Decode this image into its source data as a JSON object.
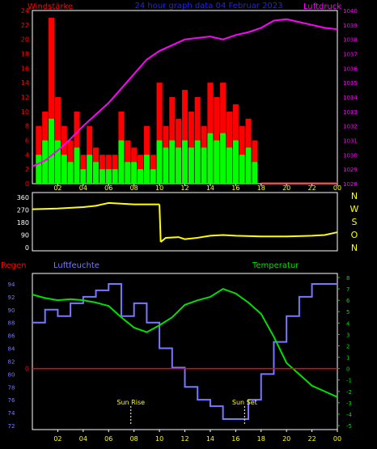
{
  "header": {
    "left_label": "Windstärke",
    "center_title": "24 hour graph data  04 Februar 2023",
    "right_label": "Luftdruck"
  },
  "colors": {
    "background": "#000000",
    "axis_frame": "#ffffff",
    "wind_gust": "#ff0000",
    "wind_avg": "#00ff00",
    "pressure": "#ff00ff",
    "direction": "#ffff00",
    "humidity": "#7878ff",
    "temperature": "#00e000",
    "rain": "#ff0000",
    "time_tick_text": "#ffff00"
  },
  "x_ticks": [
    "02",
    "04",
    "06",
    "08",
    "10",
    "12",
    "14",
    "16",
    "18",
    "20",
    "22",
    "00"
  ],
  "chart_data": [
    {
      "id": "wind_pressure",
      "type": "bar",
      "left_axis": {
        "label": "Windstärke",
        "ylim": [
          0,
          24
        ],
        "ticks": [
          0,
          2,
          4,
          6,
          8,
          10,
          12,
          14,
          16,
          18,
          20,
          22,
          24
        ]
      },
      "right_axis": {
        "label": "Luftdruck",
        "ylim": [
          1028,
          1040
        ],
        "ticks": [
          1028,
          1029,
          1030,
          1031,
          1032,
          1033,
          1034,
          1035,
          1036,
          1037,
          1038,
          1039,
          1040
        ]
      },
      "xlim": [
        0,
        24
      ],
      "series": [
        {
          "name": "gust",
          "kind": "bar",
          "x": [
            0.5,
            1.0,
            1.5,
            2.0,
            2.5,
            3.0,
            3.5,
            4.0,
            4.5,
            5.0,
            5.5,
            6.0,
            6.5,
            7.0,
            7.5,
            8.0,
            8.5,
            9.0,
            9.5,
            10.0,
            10.5,
            11.0,
            11.5,
            12.0,
            12.5,
            13.0,
            13.5,
            14.0,
            14.5,
            15.0,
            15.5,
            16.0,
            16.5,
            17.0,
            17.5
          ],
          "values": [
            8,
            10,
            23,
            12,
            8,
            6,
            10,
            4,
            8,
            5,
            4,
            4,
            4,
            10,
            6,
            5,
            4,
            8,
            4,
            14,
            8,
            12,
            9,
            13,
            10,
            12,
            8,
            14,
            12,
            14,
            10,
            11,
            8,
            9,
            6
          ]
        },
        {
          "name": "average",
          "kind": "bar",
          "x": [
            0.5,
            1.0,
            1.5,
            2.0,
            2.5,
            3.0,
            3.5,
            4.0,
            4.5,
            5.0,
            5.5,
            6.0,
            6.5,
            7.0,
            7.5,
            8.0,
            8.5,
            9.0,
            9.5,
            10.0,
            10.5,
            11.0,
            11.5,
            12.0,
            12.5,
            13.0,
            13.5,
            14.0,
            14.5,
            15.0,
            15.5,
            16.0,
            16.5,
            17.0,
            17.5
          ],
          "values": [
            4,
            6,
            9,
            6,
            4,
            3,
            5,
            2,
            4,
            3,
            2,
            2,
            2,
            6,
            3,
            3,
            2,
            4,
            2,
            6,
            5,
            6,
            5,
            6,
            5,
            6,
            5,
            7,
            6,
            7,
            5,
            6,
            4,
            5,
            3
          ]
        },
        {
          "name": "pressure",
          "kind": "line",
          "x": [
            0,
            1,
            2,
            3,
            4,
            5,
            6,
            7,
            8,
            9,
            10,
            11,
            12,
            13,
            14,
            15,
            16,
            17,
            18,
            19,
            20,
            21,
            22,
            23,
            24
          ],
          "values": [
            1029.2,
            1029.6,
            1030.3,
            1031.1,
            1032.0,
            1032.8,
            1033.6,
            1034.6,
            1035.6,
            1036.6,
            1037.2,
            1037.6,
            1038.0,
            1038.1,
            1038.2,
            1038.0,
            1038.3,
            1038.5,
            1038.8,
            1039.3,
            1039.4,
            1039.2,
            1039.0,
            1038.8,
            1038.7
          ]
        }
      ]
    },
    {
      "id": "wind_direction",
      "type": "line",
      "left_axis": {
        "ylim": [
          0,
          360
        ],
        "ticks": [
          0,
          90,
          180,
          270,
          360
        ]
      },
      "right_axis": {
        "labels": [
          "N",
          "W",
          "S",
          "O",
          "N"
        ]
      },
      "xlim": [
        0,
        24
      ],
      "series": [
        {
          "name": "direction",
          "x": [
            0,
            2,
            4,
            5,
            6,
            7,
            8,
            9,
            10,
            10.1,
            10.5,
            11.5,
            12,
            13,
            14,
            15,
            16,
            18,
            20,
            22,
            23,
            24
          ],
          "values": [
            275,
            280,
            290,
            300,
            320,
            315,
            310,
            310,
            310,
            40,
            70,
            75,
            60,
            70,
            85,
            90,
            85,
            80,
            80,
            85,
            90,
            110
          ]
        }
      ]
    },
    {
      "id": "humidity_temperature",
      "type": "line",
      "headers": {
        "rain": "Regen",
        "humidity": "Luftfeuchte",
        "temperature": "Temperatur"
      },
      "left_axis": {
        "label": "Luftfeuchte",
        "ylim": [
          72,
          95
        ],
        "ticks": [
          72,
          74,
          76,
          78,
          80,
          82,
          84,
          86,
          88,
          90,
          92,
          94
        ]
      },
      "right_axis": {
        "label": "Temperatur",
        "ylim": [
          -5,
          8
        ],
        "ticks": [
          -5,
          -4,
          -3,
          -2,
          -1,
          0,
          1,
          2,
          3,
          4,
          5,
          6,
          7,
          8
        ]
      },
      "rain_axis": {
        "label": "Regen",
        "tick": "0"
      },
      "xlim": [
        0,
        24
      ],
      "annotations": [
        {
          "text": "Sun Rise",
          "x": 7.75
        },
        {
          "text": "Sun Set",
          "x": 16.7
        }
      ],
      "series": [
        {
          "name": "Luftfeuchte",
          "x": [
            0,
            1,
            2,
            3,
            4,
            5,
            6,
            7,
            8,
            9,
            10,
            11,
            12,
            13,
            14,
            15,
            16,
            17,
            18,
            19,
            20,
            21,
            22,
            23,
            24
          ],
          "values": [
            88,
            90,
            89,
            91,
            92,
            93,
            94,
            89,
            91,
            88,
            84,
            81,
            78,
            76,
            75,
            73,
            73,
            76,
            80,
            85,
            89,
            92,
            94,
            94,
            94
          ]
        },
        {
          "name": "Temperatur",
          "x": [
            0,
            1,
            2,
            3,
            4,
            5,
            6,
            7,
            8,
            9,
            10,
            11,
            12,
            13,
            14,
            15,
            16,
            17,
            18,
            19,
            20,
            21,
            22,
            23,
            24
          ],
          "values": [
            6.5,
            6.2,
            6.0,
            6.1,
            6.0,
            5.8,
            5.5,
            4.5,
            3.6,
            3.2,
            3.8,
            4.5,
            5.6,
            6.0,
            6.3,
            7.0,
            6.6,
            5.8,
            4.8,
            2.8,
            0.5,
            -0.5,
            -1.5,
            -2.0,
            -2.5
          ]
        },
        {
          "name": "Regen",
          "x": [
            0,
            24
          ],
          "values": [
            0,
            0
          ]
        }
      ]
    }
  ]
}
